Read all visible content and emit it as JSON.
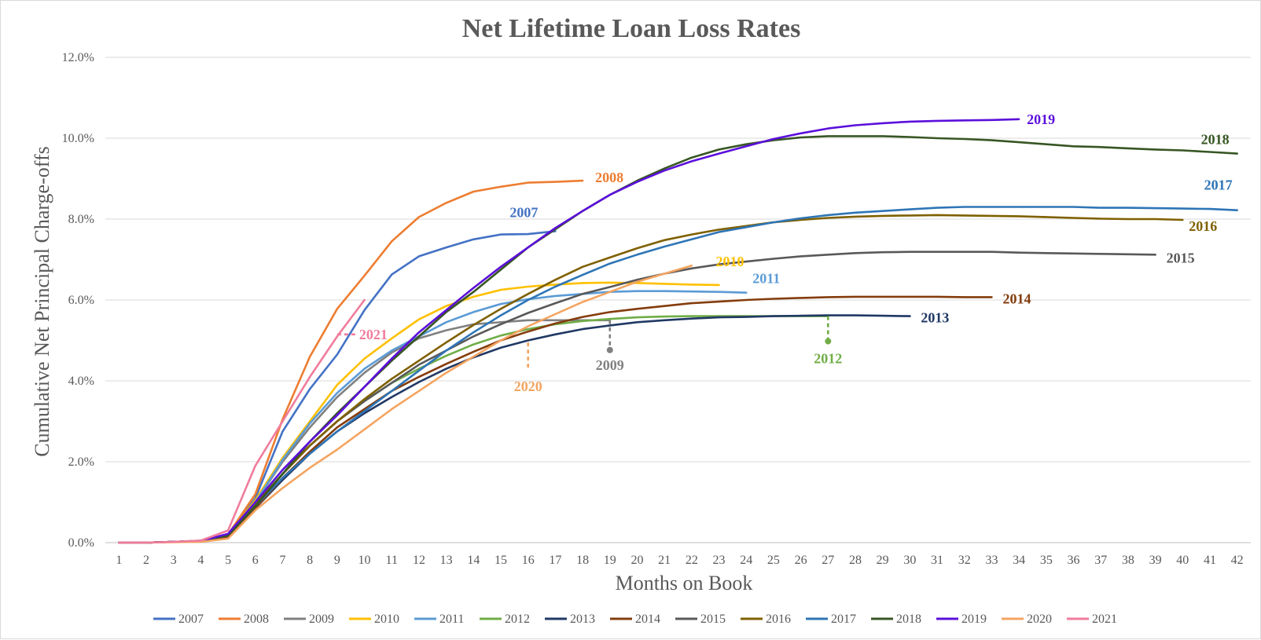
{
  "chart_data": {
    "type": "line",
    "title": "Net Lifetime Loan Loss Rates",
    "xlabel": "Months on Book",
    "ylabel": "Cumulative Net Principal Charge-offs",
    "xlim": [
      1,
      42
    ],
    "ylim": [
      0,
      12
    ],
    "y_ticks": [
      "0.0%",
      "2.0%",
      "4.0%",
      "6.0%",
      "8.0%",
      "10.0%",
      "12.0%"
    ],
    "x_ticks": [
      "1",
      "2",
      "3",
      "4",
      "5",
      "6",
      "7",
      "8",
      "9",
      "10",
      "11",
      "12",
      "13",
      "14",
      "15",
      "16",
      "17",
      "18",
      "19",
      "20",
      "21",
      "22",
      "23",
      "24",
      "25",
      "26",
      "27",
      "28",
      "29",
      "30",
      "31",
      "32",
      "33",
      "34",
      "35",
      "36",
      "37",
      "38",
      "39",
      "40",
      "41",
      "42"
    ],
    "grid": "horizontal",
    "legend_position": "bottom",
    "series": [
      {
        "name": "2007",
        "label": "2007",
        "color": "#4472C4",
        "x": [
          1,
          2,
          3,
          4,
          5,
          6,
          7,
          8,
          9,
          10,
          11,
          12,
          13,
          14,
          15,
          16,
          17
        ],
        "values": [
          0,
          0,
          0.02,
          0.05,
          0.2,
          1.1,
          2.75,
          3.8,
          4.65,
          5.75,
          6.63,
          7.08,
          7.3,
          7.5,
          7.62,
          7.63,
          7.7
        ]
      },
      {
        "name": "2008",
        "label": "2008",
        "color": "#ED7D31",
        "x": [
          1,
          2,
          3,
          4,
          5,
          6,
          7,
          8,
          9,
          10,
          11,
          12,
          13,
          14,
          15,
          16,
          17,
          18
        ],
        "values": [
          0,
          0,
          0.02,
          0.04,
          0.2,
          1.2,
          3.05,
          4.6,
          5.78,
          6.6,
          7.45,
          8.05,
          8.4,
          8.68,
          8.8,
          8.9,
          8.92,
          8.95
        ]
      },
      {
        "name": "2009",
        "label": "2009",
        "color": "#808080",
        "x": [
          1,
          2,
          3,
          4,
          5,
          6,
          7,
          8,
          9,
          10,
          11,
          12,
          13,
          14,
          15,
          16,
          17,
          18,
          19
        ],
        "values": [
          0,
          0,
          0.02,
          0.04,
          0.18,
          1.0,
          2.0,
          2.85,
          3.6,
          4.2,
          4.7,
          5.05,
          5.25,
          5.4,
          5.45,
          5.5,
          5.5,
          5.5,
          5.5
        ]
      },
      {
        "name": "2010",
        "label": "2010",
        "color": "#FFC000",
        "x": [
          1,
          2,
          3,
          4,
          5,
          6,
          7,
          8,
          9,
          10,
          11,
          12,
          13,
          14,
          15,
          16,
          17,
          18,
          19,
          20,
          21,
          22,
          23
        ],
        "values": [
          0,
          0,
          0.02,
          0.04,
          0.2,
          1.05,
          2.1,
          3.0,
          3.9,
          4.55,
          5.05,
          5.52,
          5.85,
          6.08,
          6.25,
          6.33,
          6.38,
          6.42,
          6.43,
          6.42,
          6.4,
          6.38,
          6.37
        ]
      },
      {
        "name": "2011",
        "label": "2011",
        "color": "#5B9BD5",
        "x": [
          1,
          2,
          3,
          4,
          5,
          6,
          7,
          8,
          9,
          10,
          11,
          12,
          13,
          14,
          15,
          16,
          17,
          18,
          19,
          20,
          21,
          22,
          23,
          24
        ],
        "values": [
          0,
          0,
          0.02,
          0.04,
          0.2,
          1.0,
          2.05,
          2.95,
          3.7,
          4.3,
          4.75,
          5.1,
          5.45,
          5.7,
          5.9,
          6.02,
          6.1,
          6.15,
          6.2,
          6.22,
          6.22,
          6.21,
          6.2,
          6.18
        ]
      },
      {
        "name": "2012",
        "label": "2012",
        "color": "#70AD47",
        "x": [
          1,
          2,
          3,
          4,
          5,
          6,
          7,
          8,
          9,
          10,
          11,
          12,
          13,
          14,
          15,
          16,
          17,
          18,
          19,
          20,
          21,
          22,
          23,
          24,
          25,
          26,
          27
        ],
        "values": [
          0,
          0,
          0.02,
          0.04,
          0.18,
          0.9,
          1.7,
          2.4,
          3.0,
          3.5,
          3.95,
          4.3,
          4.62,
          4.9,
          5.12,
          5.28,
          5.4,
          5.48,
          5.53,
          5.57,
          5.59,
          5.6,
          5.6,
          5.6,
          5.6,
          5.6,
          5.6
        ]
      },
      {
        "name": "2013",
        "label": "2013",
        "color": "#203864",
        "x": [
          1,
          2,
          3,
          4,
          5,
          6,
          7,
          8,
          9,
          10,
          11,
          12,
          13,
          14,
          15,
          16,
          17,
          18,
          19,
          20,
          21,
          22,
          23,
          24,
          25,
          26,
          27,
          28,
          29,
          30
        ],
        "values": [
          0,
          0,
          0.02,
          0.04,
          0.15,
          0.85,
          1.55,
          2.2,
          2.75,
          3.2,
          3.6,
          3.97,
          4.3,
          4.58,
          4.82,
          5.0,
          5.15,
          5.28,
          5.37,
          5.45,
          5.5,
          5.54,
          5.57,
          5.58,
          5.6,
          5.61,
          5.62,
          5.62,
          5.61,
          5.6
        ]
      },
      {
        "name": "2014",
        "label": "2014",
        "color": "#843C0C",
        "x": [
          1,
          2,
          3,
          4,
          5,
          6,
          7,
          8,
          9,
          10,
          11,
          12,
          13,
          14,
          15,
          16,
          17,
          18,
          19,
          20,
          21,
          22,
          23,
          24,
          25,
          26,
          27,
          28,
          29,
          30,
          31,
          32,
          33
        ],
        "values": [
          0,
          0,
          0.02,
          0.04,
          0.15,
          0.85,
          1.6,
          2.25,
          2.85,
          3.3,
          3.75,
          4.1,
          4.42,
          4.72,
          5.0,
          5.22,
          5.42,
          5.58,
          5.7,
          5.78,
          5.85,
          5.92,
          5.96,
          6.0,
          6.03,
          6.05,
          6.07,
          6.08,
          6.08,
          6.08,
          6.08,
          6.07,
          6.07
        ]
      },
      {
        "name": "2015",
        "label": "2015",
        "color": "#595959",
        "x": [
          1,
          2,
          3,
          4,
          5,
          6,
          7,
          8,
          9,
          10,
          11,
          12,
          13,
          14,
          15,
          16,
          17,
          18,
          19,
          20,
          21,
          22,
          23,
          24,
          25,
          26,
          27,
          28,
          29,
          30,
          31,
          32,
          33,
          34,
          35,
          36,
          37,
          38,
          39
        ],
        "values": [
          0,
          0,
          0.02,
          0.04,
          0.18,
          0.95,
          1.7,
          2.4,
          3.0,
          3.5,
          3.95,
          4.4,
          4.75,
          5.1,
          5.4,
          5.68,
          5.92,
          6.15,
          6.32,
          6.5,
          6.65,
          6.78,
          6.88,
          6.95,
          7.02,
          7.08,
          7.12,
          7.16,
          7.18,
          7.19,
          7.19,
          7.19,
          7.19,
          7.17,
          7.16,
          7.15,
          7.14,
          7.13,
          7.12
        ]
      },
      {
        "name": "2016",
        "label": "2016",
        "color": "#7F6000",
        "x": [
          1,
          2,
          3,
          4,
          5,
          6,
          7,
          8,
          9,
          10,
          11,
          12,
          13,
          14,
          15,
          16,
          17,
          18,
          19,
          20,
          21,
          22,
          23,
          24,
          25,
          26,
          27,
          28,
          29,
          30,
          31,
          32,
          33,
          34,
          35,
          36,
          37,
          38,
          39,
          40
        ],
        "values": [
          0,
          0,
          0.02,
          0.04,
          0.18,
          0.95,
          1.7,
          2.4,
          3.0,
          3.55,
          4.05,
          4.5,
          4.95,
          5.38,
          5.78,
          6.15,
          6.5,
          6.82,
          7.05,
          7.28,
          7.48,
          7.62,
          7.74,
          7.83,
          7.92,
          7.98,
          8.03,
          8.06,
          8.08,
          8.09,
          8.1,
          8.09,
          8.08,
          8.07,
          8.05,
          8.03,
          8.01,
          8.0,
          8.0,
          7.98
        ]
      },
      {
        "name": "2017",
        "label": "2017",
        "color": "#2E75B6",
        "x": [
          1,
          2,
          3,
          4,
          5,
          6,
          7,
          8,
          9,
          10,
          11,
          12,
          13,
          14,
          15,
          16,
          17,
          18,
          19,
          20,
          21,
          22,
          23,
          24,
          25,
          26,
          27,
          28,
          29,
          30,
          31,
          32,
          33,
          34,
          35,
          36,
          37,
          38,
          39,
          40,
          41,
          42
        ],
        "values": [
          0,
          0,
          0.02,
          0.04,
          0.18,
          0.9,
          1.6,
          2.2,
          2.75,
          3.25,
          3.75,
          4.25,
          4.75,
          5.2,
          5.62,
          6.0,
          6.33,
          6.62,
          6.9,
          7.12,
          7.32,
          7.5,
          7.68,
          7.8,
          7.92,
          8.02,
          8.1,
          8.16,
          8.2,
          8.24,
          8.28,
          8.3,
          8.3,
          8.3,
          8.3,
          8.3,
          8.28,
          8.28,
          8.27,
          8.26,
          8.25,
          8.22
        ]
      },
      {
        "name": "2018",
        "label": "2018",
        "color": "#375623",
        "x": [
          1,
          2,
          3,
          4,
          5,
          6,
          7,
          8,
          9,
          10,
          11,
          12,
          13,
          14,
          15,
          16,
          17,
          18,
          19,
          20,
          21,
          22,
          23,
          24,
          25,
          26,
          27,
          28,
          29,
          30,
          31,
          32,
          33,
          34,
          35,
          36,
          37,
          38,
          39,
          40,
          41,
          42
        ],
        "values": [
          0,
          0,
          0.02,
          0.04,
          0.18,
          0.9,
          1.7,
          2.5,
          3.2,
          3.85,
          4.5,
          5.1,
          5.7,
          6.2,
          6.75,
          7.3,
          7.75,
          8.2,
          8.6,
          8.95,
          9.25,
          9.52,
          9.72,
          9.85,
          9.95,
          10.02,
          10.05,
          10.05,
          10.05,
          10.03,
          10.0,
          9.98,
          9.95,
          9.9,
          9.85,
          9.8,
          9.78,
          9.75,
          9.72,
          9.7,
          9.66,
          9.62
        ]
      },
      {
        "name": "2019",
        "label": "2019",
        "color": "#5B0FDB",
        "x": [
          1,
          2,
          3,
          4,
          5,
          6,
          7,
          8,
          9,
          10,
          11,
          12,
          13,
          14,
          15,
          16,
          17,
          18,
          19,
          20,
          21,
          22,
          23,
          24,
          25,
          26,
          27,
          28,
          29,
          30,
          31,
          32,
          33,
          34
        ],
        "values": [
          0,
          0,
          0.02,
          0.04,
          0.22,
          1.0,
          1.8,
          2.5,
          3.15,
          3.85,
          4.55,
          5.2,
          5.75,
          6.3,
          6.82,
          7.3,
          7.78,
          8.2,
          8.6,
          8.92,
          9.2,
          9.43,
          9.62,
          9.8,
          9.98,
          10.12,
          10.24,
          10.32,
          10.37,
          10.41,
          10.43,
          10.44,
          10.45,
          10.47
        ]
      },
      {
        "name": "2020",
        "label": "2020",
        "color": "#F4A460",
        "x": [
          1,
          2,
          3,
          4,
          5,
          6,
          7,
          8,
          9,
          10,
          11,
          12,
          13,
          14,
          15,
          16,
          17,
          18,
          19,
          20,
          21,
          22
        ],
        "values": [
          0,
          0,
          0.01,
          0.02,
          0.1,
          0.8,
          1.35,
          1.85,
          2.3,
          2.8,
          3.3,
          3.75,
          4.2,
          4.6,
          5.0,
          5.35,
          5.65,
          5.95,
          6.2,
          6.45,
          6.65,
          6.85
        ]
      },
      {
        "name": "2021",
        "label": "2021",
        "color": "#F07C9C",
        "x": [
          1,
          2,
          3,
          4,
          5,
          6,
          7,
          8,
          9,
          10
        ],
        "values": [
          0,
          0,
          0.02,
          0.05,
          0.3,
          1.9,
          3.0,
          4.1,
          5.1,
          6.0
        ]
      }
    ],
    "annotations": [
      {
        "label": "2021",
        "series": "2021",
        "x": 9,
        "y": 5.15
      },
      {
        "label": "2020",
        "series": "2020",
        "x": 16,
        "y": 4.95
      },
      {
        "label": "2009",
        "series": "2009",
        "x": 19,
        "y": 5.5
      },
      {
        "label": "2012",
        "series": "2012",
        "x": 27,
        "y": 5.6
      }
    ]
  }
}
